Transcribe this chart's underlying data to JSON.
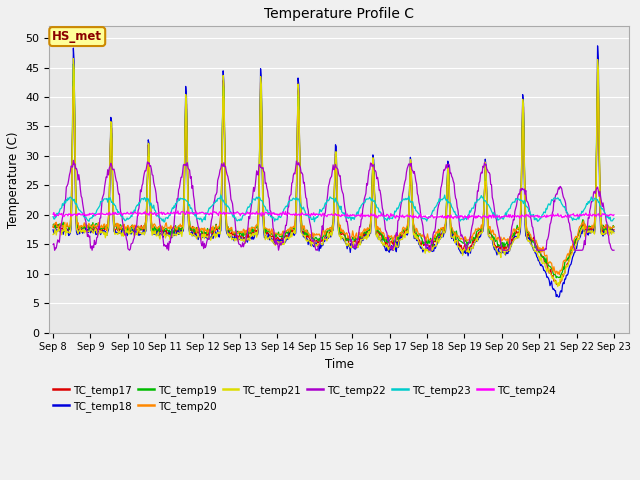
{
  "title": "Temperature Profile C",
  "xlabel": "Time",
  "ylabel": "Temperature (C)",
  "ylim": [
    0,
    52
  ],
  "annotation": "HS_met",
  "series_colors": {
    "TC_temp17": "#dd0000",
    "TC_temp18": "#0000dd",
    "TC_temp19": "#00bb00",
    "TC_temp20": "#ff8800",
    "TC_temp21": "#dddd00",
    "TC_temp22": "#aa00cc",
    "TC_temp23": "#00cccc",
    "TC_temp24": "#ff00ff"
  },
  "series_order": [
    "TC_temp17",
    "TC_temp18",
    "TC_temp19",
    "TC_temp20",
    "TC_temp21",
    "TC_temp22",
    "TC_temp23",
    "TC_temp24"
  ],
  "bg_color": "#e8e8e8",
  "grid_color": "#ffffff",
  "xtick_labels": [
    "Sep 8",
    "Sep 9",
    "Sep 10",
    "Sep 11",
    "Sep 12",
    "Sep 13",
    "Sep 14",
    "Sep 15",
    "Sep 16",
    "Sep 17",
    "Sep 18",
    "Sep 19",
    "Sep 20",
    "Sep 21",
    "Sep 22",
    "Sep 23"
  ],
  "xtick_positions": [
    0,
    1,
    2,
    3,
    4,
    5,
    6,
    7,
    8,
    9,
    10,
    11,
    12,
    13,
    14,
    15
  ],
  "fig_facecolor": "#f0f0f0"
}
